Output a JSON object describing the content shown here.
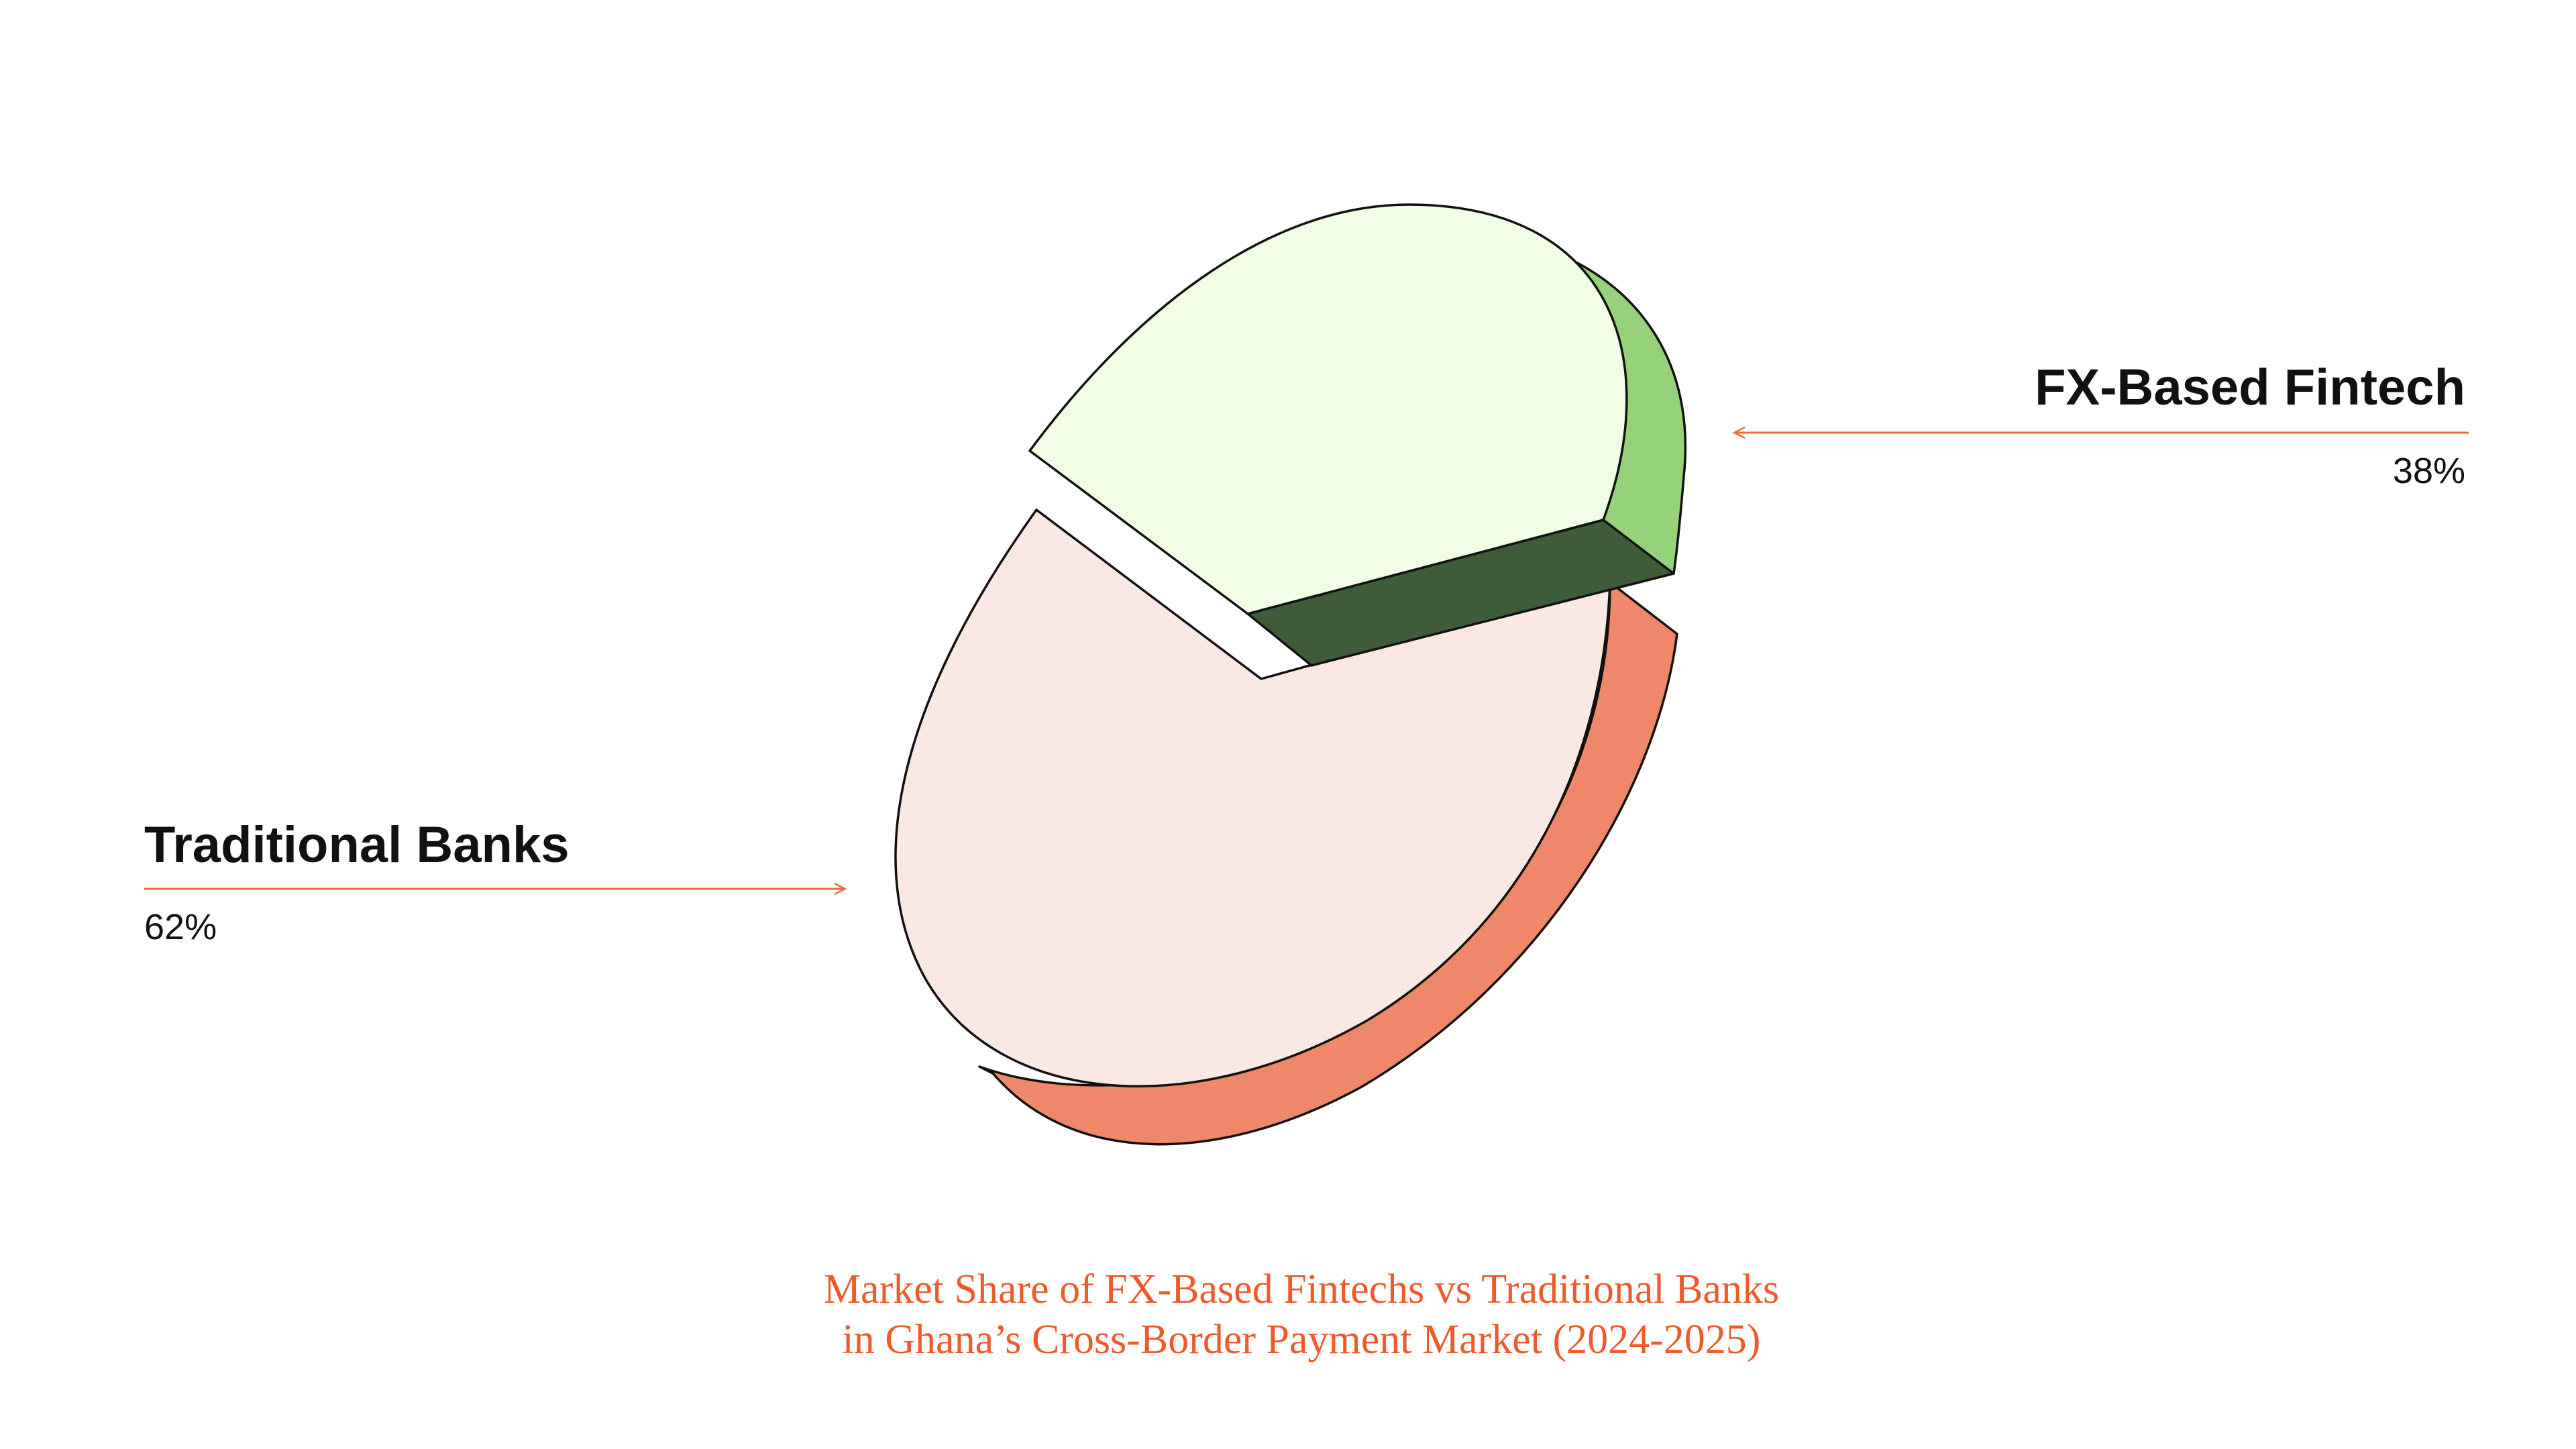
{
  "chart_data": {
    "type": "pie",
    "slices": [
      {
        "name": "Traditional Banks",
        "value": 62,
        "value_label": "62%"
      },
      {
        "name": "FX-Based Fintech",
        "value": 38,
        "value_label": "38%"
      }
    ],
    "title_lines": [
      "Market Share of FX-Based  Fintechs vs Traditional Banks",
      "in Ghana’s Cross-Border  Payment Market (2024-2025)"
    ],
    "style": "3d-exploded",
    "colors": {
      "traditional_top": "#f9e8e4",
      "traditional_side": "#ef876b",
      "fintech_top": "#f2fde5",
      "fintech_side": "#96d27a",
      "fintech_wall": "#3f5c39",
      "outline": "#111111",
      "accent": "#ef6a43",
      "title": "#ef5a2a"
    }
  }
}
